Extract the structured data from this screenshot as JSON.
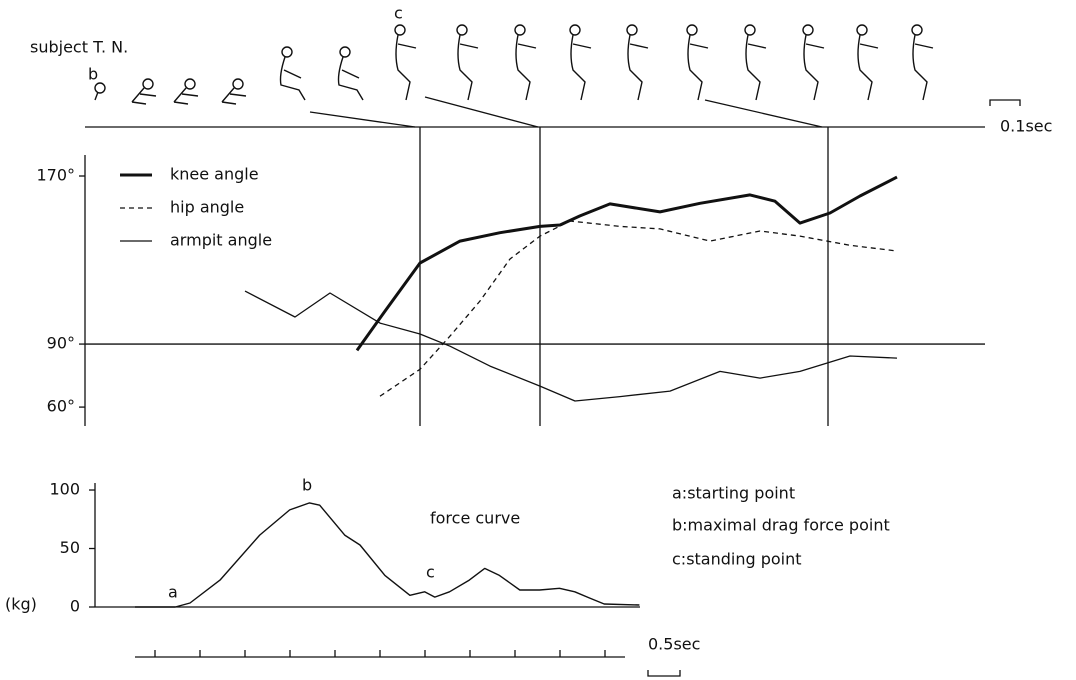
{
  "subject": "subject T. N.",
  "figure_labels": [
    "b",
    "c"
  ],
  "notes": [
    "a:starting point",
    "b:maximal drag force point",
    "c:standing point"
  ],
  "chart_data": [
    {
      "type": "line",
      "scale_label": "0.1sec",
      "xlim": [
        0,
        4.5
      ],
      "ylim": [
        51,
        180
      ],
      "yticks": [
        {
          "value": 60,
          "label": "60°"
        },
        {
          "value": 90,
          "label": "90°"
        },
        {
          "value": 170,
          "label": "170°"
        }
      ],
      "hline": 90,
      "event_times": [
        1.675,
        2.275,
        3.715
      ],
      "series": [
        {
          "name": "knee angle",
          "color": "#111",
          "width": 3,
          "dash": false,
          "x": [
            1.36,
            1.5,
            1.675,
            1.875,
            2.075,
            2.275,
            2.375,
            2.475,
            2.625,
            2.875,
            3.075,
            3.325,
            3.45,
            3.575,
            3.725,
            3.875,
            4.06
          ],
          "values": [
            87,
            105.7,
            128.6,
            139,
            143,
            146,
            146.7,
            151,
            156.7,
            152.9,
            157,
            161,
            158,
            147.6,
            152.4,
            160.5,
            169.5
          ]
        },
        {
          "name": "hip angle",
          "color": "#111",
          "width": 1.3,
          "dash": true,
          "x": [
            1.475,
            1.675,
            1.825,
            1.975,
            2.125,
            2.275,
            2.425,
            2.675,
            2.875,
            3.125,
            3.375,
            3.575,
            3.825,
            4.06
          ],
          "values": [
            65.2,
            78,
            93.8,
            110.5,
            130.5,
            141.4,
            148.6,
            146,
            144.8,
            139,
            143.8,
            141.4,
            137,
            134.3
          ]
        },
        {
          "name": "armpit angle",
          "color": "#111",
          "width": 1.3,
          "dash": false,
          "x": [
            0.8,
            1.05,
            1.225,
            1.475,
            1.675,
            1.825,
            2.025,
            2.275,
            2.45,
            2.675,
            2.925,
            3.175,
            3.375,
            3.575,
            3.825,
            4.06
          ],
          "values": [
            115.2,
            102.9,
            114.3,
            100,
            94.8,
            89,
            79.5,
            70,
            62.9,
            65,
            67.6,
            77,
            73.8,
            77,
            84.3,
            83.3
          ]
        }
      ]
    },
    {
      "type": "line",
      "title": "force curve",
      "y_label": "(kg)",
      "scale_label": "0.5sec",
      "xlim": [
        0,
        7.9
      ],
      "ylim": [
        0,
        106
      ],
      "yticks": [
        0,
        50,
        100
      ],
      "point_labels": [
        "a",
        "b",
        "c"
      ],
      "series": [
        {
          "color": "#111",
          "width": 1.4,
          "dash": false,
          "x": [
            0,
            0.63,
            0.86,
            1.33,
            1.95,
            2.42,
            2.73,
            2.89,
            3.28,
            3.52,
            3.91,
            4.3,
            4.53,
            4.69,
            4.92,
            5.23,
            5.47,
            5.7,
            6.02,
            6.33,
            6.64,
            6.88,
            7.11,
            7.34,
            7.89
          ],
          "values": [
            0,
            0,
            3.4,
            23,
            61.5,
            83,
            89,
            87,
            61.5,
            53,
            27,
            10,
            13,
            8.5,
            13,
            23,
            33,
            27,
            14.5,
            14.5,
            16,
            13,
            7.7,
            2.6,
            1.7
          ]
        }
      ]
    }
  ]
}
